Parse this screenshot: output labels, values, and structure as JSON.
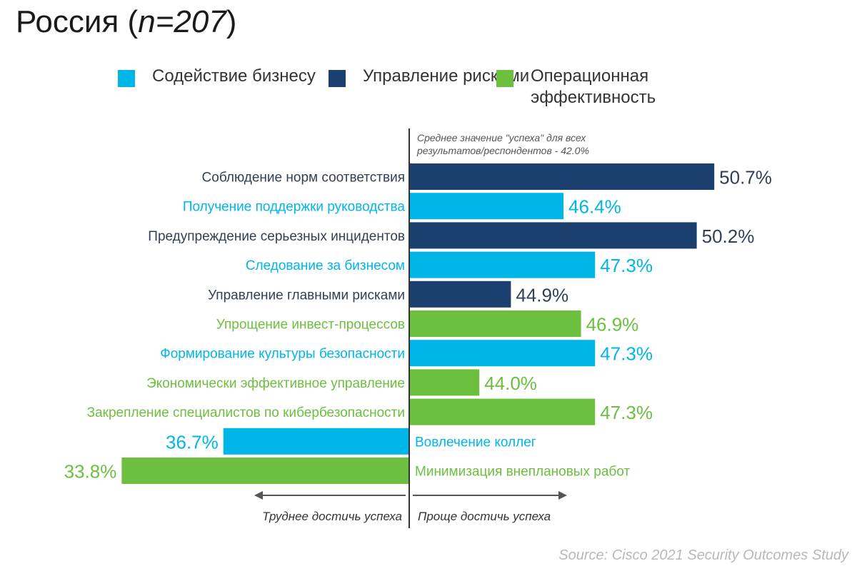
{
  "title": {
    "main": "Россия",
    "n_label": "n=207"
  },
  "legend": [
    {
      "label": "Содействие бизнесу",
      "color": "#00b6e8"
    },
    {
      "label": "Управление рисками",
      "color": "#1b3f6e"
    },
    {
      "label": "Операционная эффективность",
      "color": "#6cbf3f"
    }
  ],
  "colors": {
    "blue": "#00b6e8",
    "navy": "#1b3f6e",
    "green": "#6cbf3f",
    "dark_label": "#333f55"
  },
  "source": "Source: Cisco 2021 Security Outcomes Study",
  "chart_data": {
    "type": "bar",
    "orientation": "horizontal",
    "baseline_label": "Среднее значение \"успеха\" для всех результатов/респондентов - 42.0%",
    "baseline_value": 42.0,
    "baseline_lines": [
      "Среднее значение \"успеха\" для всех",
      "результатов/респондентов - 42.0%"
    ],
    "axis_left_label": "Труднее достичь успеха",
    "axis_right_label": "Проще достичь успеха",
    "categories": [
      "Соблюдение норм соответствия",
      "Получение поддержки руководства",
      "Предупреждение серьезных инцидентов",
      "Следование за бизнесом",
      "Управление главными рисками",
      "Упрощение инвест-процессов",
      "Формирование культуры безопасности",
      "Экономически эффективное управление",
      "Закрепление специалистов по кибербезопасности",
      "Вовлечение коллег",
      "Минимизация внеплановых работ"
    ],
    "values": [
      50.7,
      46.4,
      50.2,
      47.3,
      44.9,
      46.9,
      47.3,
      44.0,
      47.3,
      36.7,
      33.8
    ],
    "value_labels": [
      "50.7%",
      "46.4%",
      "50.2%",
      "47.3%",
      "44.9%",
      "46.9%",
      "47.3%",
      "44.0%",
      "47.3%",
      "36.7%",
      "33.8%"
    ],
    "groups": [
      "navy",
      "blue",
      "navy",
      "blue",
      "navy",
      "green",
      "blue",
      "green",
      "green",
      "blue",
      "green"
    ]
  }
}
